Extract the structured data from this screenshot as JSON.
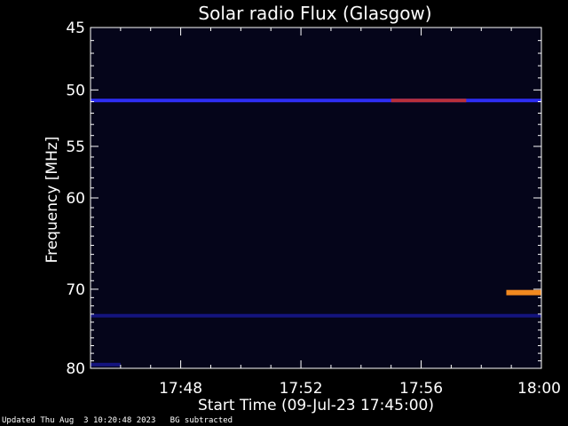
{
  "chart_data": {
    "type": "heatmap",
    "title": "Solar radio Flux (Glasgow)",
    "xlabel": "Start Time (09-Jul-23 17:45:00)",
    "ylabel": "Frequency [MHz]",
    "x_unit": "time",
    "xlim": [
      "17:45:00",
      "18:00:00"
    ],
    "ylim": [
      45,
      80
    ],
    "y_scale": "log",
    "x_ticks": [
      "17:48",
      "17:52",
      "17:56",
      "18:00"
    ],
    "y_ticks": [
      45,
      50,
      55,
      60,
      70,
      80
    ],
    "colors": {
      "background": "#000000",
      "plot_background": "#05051a",
      "low": "#1a1aa0",
      "mid": "#3030ff",
      "high": "#c03030",
      "peak": "#ff9020"
    },
    "features": [
      {
        "band_mhz": 50.9,
        "start": "17:45:00",
        "end": "18:00:00",
        "intensity": "medium"
      },
      {
        "band_mhz": 50.9,
        "start": "17:55:00",
        "end": "17:57:30",
        "intensity": "high"
      },
      {
        "band_mhz": 73.2,
        "start": "17:45:00",
        "end": "18:00:00",
        "intensity": "low"
      },
      {
        "band_mhz": 70.4,
        "start": "17:58:50",
        "end": "18:00:00",
        "intensity": "peak"
      },
      {
        "band_mhz": 79.5,
        "start": "17:45:00",
        "end": "17:46:00",
        "intensity": "low"
      }
    ]
  },
  "footer": {
    "updated": "Updated Thu Aug  3 10:20:48 2023",
    "note": "BG subtracted"
  }
}
